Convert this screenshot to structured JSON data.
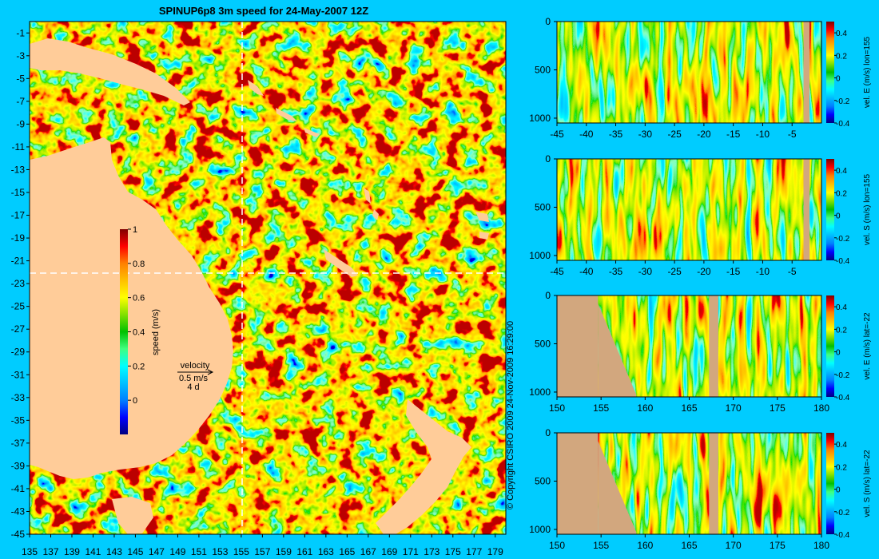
{
  "title": "SPINUP6p8 3m speed for 24-May-2007 12Z",
  "copyright": "© Copyright CSIRO 2009   24-Nov-2009 16:29:00",
  "colors": {
    "background": "#00ccff",
    "land": "#ffcc99",
    "section_land": "#d2a77e",
    "jet_stops": [
      "#000080",
      "#0000ff",
      "#0080ff",
      "#00c0ff",
      "#00ffff",
      "#40ff80",
      "#00c000",
      "#80e000",
      "#ffff00",
      "#ffc000",
      "#ff8000",
      "#ff0000",
      "#800000"
    ]
  },
  "map": {
    "colorbar_label": "speed (m/s)",
    "velocity_legend": {
      "title": "velocity",
      "speed": "0.5 m/s",
      "duration": "4 d"
    }
  },
  "chart_data": [
    {
      "type": "heatmap",
      "name": "map",
      "title": "SPINUP6p8 3m speed for 24-May-2007 12Z",
      "xlim": [
        135,
        180
      ],
      "ylim": [
        -45,
        0
      ],
      "xticks": [
        "135",
        "137",
        "139",
        "141",
        "143",
        "145",
        "147",
        "149",
        "151",
        "153",
        "155",
        "157",
        "159",
        "161",
        "163",
        "165",
        "167",
        "169",
        "171",
        "173",
        "175",
        "177",
        "179"
      ],
      "yticks": [
        "-1",
        "-3",
        "-5",
        "-7",
        "-9",
        "-11",
        "-13",
        "-15",
        "-17",
        "-19",
        "-21",
        "-23",
        "-25",
        "-27",
        "-29",
        "-31",
        "-33",
        "-35",
        "-37",
        "-39",
        "-41",
        "-43",
        "-45"
      ],
      "colorbar": {
        "label": "speed (m/s)",
        "range": [
          -0.2,
          1
        ],
        "ticks": [
          "1",
          "0.8",
          "0.6",
          "0.4",
          "0.2",
          "0"
        ]
      },
      "section_lines": {
        "lon": 155,
        "lat": -22
      }
    },
    {
      "type": "heatmap",
      "name": "section-1",
      "ylabel": "vel. E (m/s) lon=155",
      "xticks": [
        "-45",
        "-40",
        "-35",
        "-30",
        "-25",
        "-20",
        "-15",
        "-10",
        "-5"
      ],
      "xlim": [
        -45,
        0
      ],
      "yticks": [
        "0",
        "500",
        "1000"
      ],
      "ylim": [
        1050,
        0
      ],
      "colorbar": {
        "range": [
          -0.4,
          0.5
        ],
        "ticks": [
          "0.4",
          "0.2",
          "0",
          "-0.2",
          "-0.4"
        ]
      }
    },
    {
      "type": "heatmap",
      "name": "section-2",
      "ylabel": "vel. S (m/s) lon=155",
      "xticks": [
        "-45",
        "-40",
        "-35",
        "-30",
        "-25",
        "-20",
        "-15",
        "-10",
        "-5"
      ],
      "xlim": [
        -45,
        0
      ],
      "yticks": [
        "0",
        "500",
        "1000"
      ],
      "ylim": [
        1050,
        0
      ],
      "colorbar": {
        "range": [
          -0.4,
          0.5
        ],
        "ticks": [
          "0.4",
          "0.2",
          "0",
          "-0.2",
          "-0.4"
        ]
      }
    },
    {
      "type": "heatmap",
      "name": "section-3",
      "ylabel": "vel. E (m/s) lat=-22",
      "xticks": [
        "150",
        "155",
        "160",
        "165",
        "170",
        "175",
        "180"
      ],
      "xlim": [
        150,
        180
      ],
      "yticks": [
        "0",
        "500",
        "1000"
      ],
      "ylim": [
        1050,
        0
      ],
      "colorbar": {
        "range": [
          -0.4,
          0.5
        ],
        "ticks": [
          "0.4",
          "0.2",
          "0",
          "-0.2",
          "-0.4"
        ]
      }
    },
    {
      "type": "heatmap",
      "name": "section-4",
      "ylabel": "vel. S (m/s) lat=-22",
      "xticks": [
        "150",
        "155",
        "160",
        "165",
        "170",
        "175",
        "180"
      ],
      "xlim": [
        150,
        180
      ],
      "yticks": [
        "0",
        "500",
        "1000"
      ],
      "ylim": [
        1050,
        0
      ],
      "colorbar": {
        "range": [
          -0.4,
          0.5
        ],
        "ticks": [
          "0.4",
          "0.2",
          "0",
          "-0.2",
          "-0.4"
        ]
      }
    }
  ]
}
